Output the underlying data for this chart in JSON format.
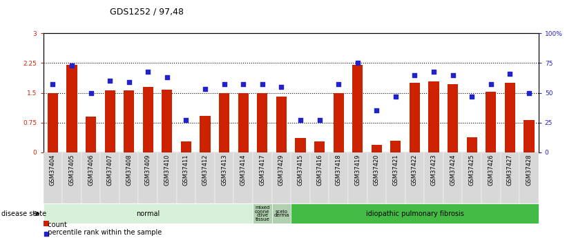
{
  "title": "GDS1252 / 97,48",
  "categories": [
    "GSM37404",
    "GSM37405",
    "GSM37406",
    "GSM37407",
    "GSM37408",
    "GSM37409",
    "GSM37410",
    "GSM37411",
    "GSM37412",
    "GSM37413",
    "GSM37414",
    "GSM37417",
    "GSM37429",
    "GSM37415",
    "GSM37416",
    "GSM37418",
    "GSM37419",
    "GSM37420",
    "GSM37421",
    "GSM37422",
    "GSM37423",
    "GSM37424",
    "GSM37425",
    "GSM37426",
    "GSM37427",
    "GSM37428"
  ],
  "bar_values": [
    1.5,
    2.2,
    0.9,
    1.57,
    1.57,
    1.65,
    1.58,
    0.28,
    0.92,
    1.5,
    1.5,
    1.5,
    1.4,
    0.37,
    0.28,
    1.5,
    2.2,
    0.18,
    0.3,
    1.75,
    1.78,
    1.72,
    0.38,
    1.52,
    1.75,
    0.82
  ],
  "dot_values_pct": [
    57,
    73,
    50,
    60,
    59,
    68,
    63,
    27,
    53,
    57,
    57,
    57,
    55,
    27,
    27,
    57,
    75,
    35,
    47,
    65,
    68,
    65,
    47,
    57,
    66,
    50
  ],
  "bar_color": "#cc2200",
  "dot_color": "#2222cc",
  "ylim_left": [
    0,
    3
  ],
  "ylim_right": [
    0,
    100
  ],
  "yticks_left": [
    0,
    0.75,
    1.5,
    2.25,
    3
  ],
  "yticks_right": [
    0,
    25,
    50,
    75,
    100
  ],
  "ytick_labels_left": [
    "0",
    "0.75",
    "1.5",
    "2.25",
    "3"
  ],
  "ytick_labels_right": [
    "0",
    "25",
    "50",
    "75",
    "100%"
  ],
  "hline_values": [
    0.75,
    1.5,
    2.25
  ],
  "disease_groups": [
    {
      "label": "normal",
      "start": 0,
      "end": 11,
      "color": "#d8f0d8"
    },
    {
      "label": "mixed\nconne\nctive\ntissue",
      "start": 11,
      "end": 12,
      "color": "#b0d0b0"
    },
    {
      "label": "scelo\nderma",
      "start": 12,
      "end": 13,
      "color": "#b0d0b0"
    },
    {
      "label": "idiopathic pulmonary fibrosis",
      "start": 13,
      "end": 26,
      "color": "#44bb44"
    }
  ],
  "legend_items": [
    {
      "label": "count",
      "color": "#cc2200"
    },
    {
      "label": "percentile rank within the sample",
      "color": "#2222cc"
    }
  ],
  "disease_state_label": "disease state",
  "background_color": "#ffffff",
  "title_fontsize": 9,
  "tick_fontsize": 6.5,
  "bar_width": 0.55,
  "xtick_bg_color": "#d8d8d8"
}
